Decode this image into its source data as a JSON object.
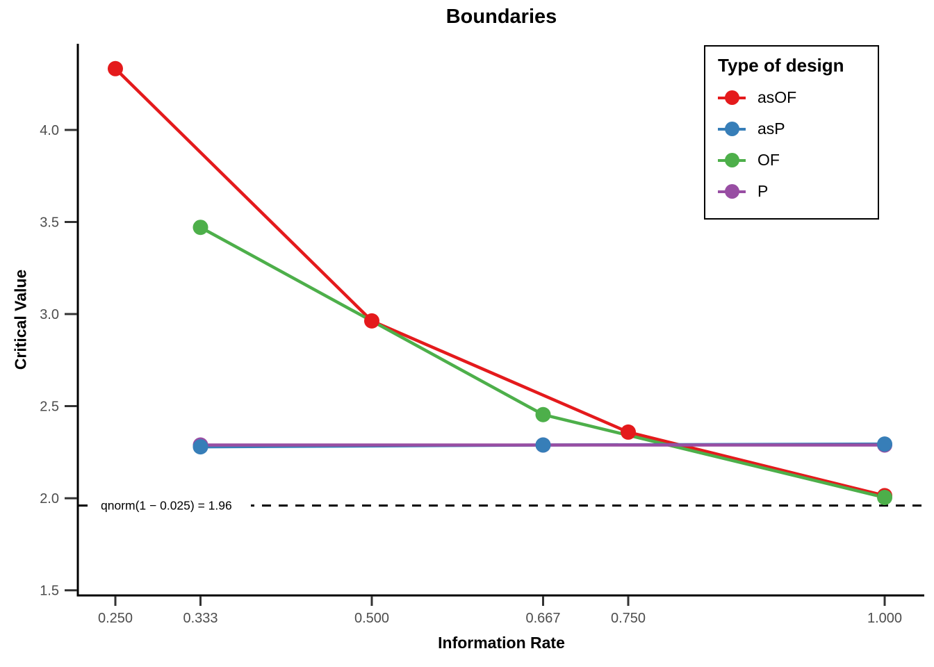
{
  "chart_data": {
    "type": "line",
    "title": "Boundaries",
    "xlabel": "Information Rate",
    "ylabel": "Critical Value",
    "xlim": [
      0.2141,
      1.0386
    ],
    "ylim": [
      1.472,
      4.468
    ],
    "grid": false,
    "x_ticks": [
      0.25,
      0.333,
      0.5,
      0.667,
      0.75,
      1.0
    ],
    "x_tick_labels": [
      "0.250",
      "0.333",
      "0.500",
      "0.667",
      "0.750",
      "1.000"
    ],
    "y_ticks": [
      1.5,
      2.0,
      2.5,
      3.0,
      3.5,
      4.0
    ],
    "y_tick_labels": [
      "1.5",
      "2.0",
      "2.5",
      "3.0",
      "3.5",
      "4.0"
    ],
    "legend": {
      "title": "Type of design",
      "position": "top-right"
    },
    "series": [
      {
        "name": "asOF",
        "color": "#E41A1C",
        "x": [
          0.25,
          0.5,
          0.75,
          1.0
        ],
        "y": [
          4.333,
          2.963,
          2.359,
          2.014
        ]
      },
      {
        "name": "asP",
        "color": "#377EB8",
        "x": [
          0.333,
          0.667,
          1.0
        ],
        "y": [
          2.279,
          2.289,
          2.294
        ]
      },
      {
        "name": "OF",
        "color": "#4DAF4A",
        "x": [
          0.333,
          0.667,
          1.0
        ],
        "y": [
          3.471,
          2.454,
          2.004
        ]
      },
      {
        "name": "P",
        "color": "#984EA3",
        "x": [
          0.333,
          0.667,
          1.0
        ],
        "y": [
          2.289,
          2.289,
          2.289
        ]
      }
    ],
    "annotation": {
      "label": "qnorm(1 − 0.025) = 1.96",
      "y": 1.96,
      "line_style": "dashed",
      "color": "#000000"
    }
  },
  "colors": {
    "axis_line": "#000000",
    "tick_mark": "#333333",
    "tick_label": "#4D4D4D",
    "text": "#000000",
    "background": "#ffffff"
  }
}
